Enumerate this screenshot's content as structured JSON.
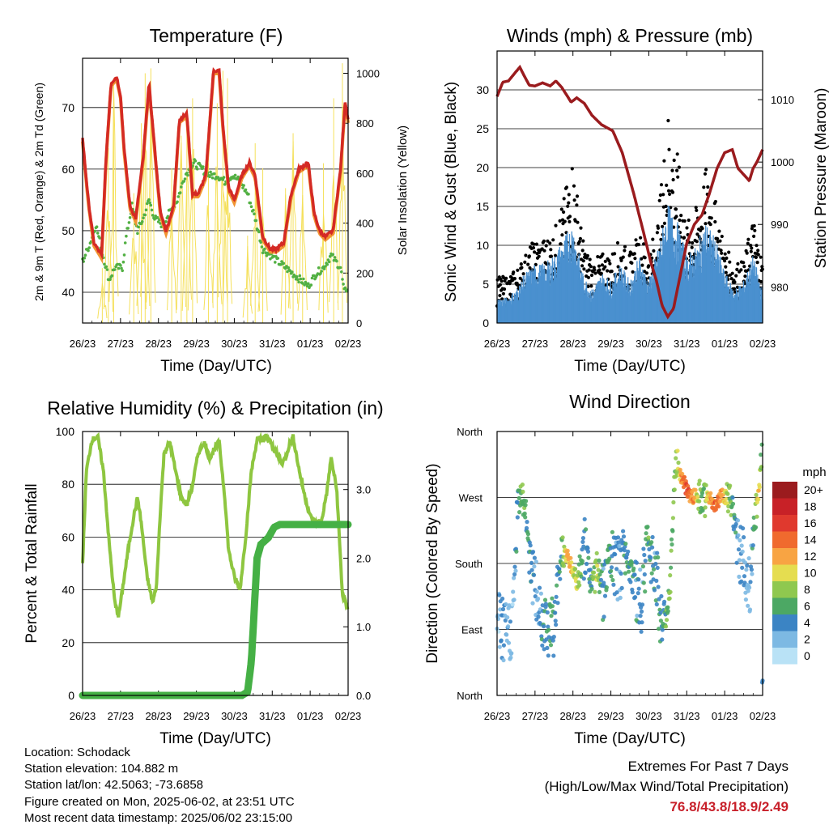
{
  "panels": {
    "temperature": {
      "title": "Temperature (F)",
      "ylabel_left": "2m & 9m T (Red, Orange) & 2m Td (Green)",
      "ylabel_right": "Solar Insolation (Yellow)",
      "xlabel": "Time (Day/UTC)"
    },
    "winds": {
      "title": "Winds (mph) & Pressure (mb)",
      "ylabel_left": "Sonic Wind & Gust (Blue, Black)",
      "ylabel_right": "Station Pressure (Maroon)",
      "xlabel": "Time (Day/UTC)"
    },
    "humidity": {
      "title": "Relative Humidity (%) & Precipitation (in)",
      "ylabel_left": "Percent & Total Rainfall",
      "xlabel": "Time (Day/UTC)"
    },
    "direction": {
      "title": "Wind Direction",
      "ylabel_left": "Direction (Colored By Speed)",
      "xlabel": "Time (Day/UTC)",
      "colorbar_title": "mph",
      "colorbar_labels": [
        "20+",
        "18",
        "16",
        "14",
        "12",
        "10",
        "8",
        "6",
        "4",
        "2",
        "0"
      ],
      "colorbar_colors": [
        "#9b1b1e",
        "#c82127",
        "#e0392e",
        "#f06a2e",
        "#f8a443",
        "#e5dd50",
        "#8fc84f",
        "#4ca864",
        "#3b84c4",
        "#7db9e3",
        "#b9e2f6"
      ]
    }
  },
  "footer": {
    "location": "Location: Schodack",
    "elevation": "Station elevation: 104.882 m",
    "latlon": "Station lat/lon: 42.5063; -73.6858",
    "created": "Figure created on Mon, 2025-06-02, at 23:51 UTC",
    "recent": "Most recent data timestamp: 2025/06/02 23:15:00",
    "extremes_title": "Extremes For Past 7 Days",
    "extremes_sub": "(High/Low/Max Wind/Total Precipitation)",
    "extremes_values": "76.8/43.8/18.9/2.49"
  },
  "chart_data": [
    {
      "id": "temperature",
      "type": "line",
      "x_ticks": [
        "26/23",
        "27/23",
        "28/23",
        "29/23",
        "30/23",
        "31/23",
        "01/23",
        "02/23"
      ],
      "xlim": [
        0,
        7
      ],
      "ylim": [
        35,
        78
      ],
      "y_ticks": [
        40,
        50,
        60,
        70
      ],
      "y2lim": [
        0,
        1060
      ],
      "y2_ticks": [
        0,
        200,
        400,
        600,
        800,
        1000
      ],
      "colors": {
        "t2m": "#d42a24",
        "t9m": "#f19433",
        "td": "#52b043",
        "solar": "#f5e05b"
      },
      "series": [
        {
          "key": "t2m",
          "x": [
            0,
            0.15,
            0.3,
            0.5,
            0.62,
            0.75,
            0.9,
            1.0,
            1.1,
            1.25,
            1.4,
            1.6,
            1.75,
            1.95,
            2.05,
            2.2,
            2.4,
            2.55,
            2.75,
            2.9,
            3.05,
            3.25,
            3.45,
            3.6,
            3.7,
            3.85,
            4.0,
            4.2,
            4.4,
            4.55,
            4.75,
            4.95,
            5.1,
            5.3,
            5.5,
            5.7,
            5.95,
            6.1,
            6.25,
            6.4,
            6.6,
            6.8,
            6.92,
            7.0
          ],
          "values": [
            65,
            55,
            48,
            46,
            62,
            74,
            75,
            72,
            63,
            54,
            52,
            62,
            74,
            60,
            53,
            50,
            54,
            68,
            69,
            56,
            56,
            59,
            76,
            76,
            67,
            57,
            55,
            59,
            61,
            59,
            49,
            47,
            47,
            48,
            56,
            60,
            61,
            53,
            50,
            49,
            50,
            60,
            71,
            68
          ]
        },
        {
          "key": "td",
          "x": [
            0,
            0.2,
            0.35,
            0.5,
            0.7,
            0.85,
            1.05,
            1.15,
            1.3,
            1.45,
            1.6,
            1.75,
            1.9,
            2.1,
            2.3,
            2.5,
            2.7,
            2.95,
            3.15,
            3.35,
            3.55,
            3.75,
            3.95,
            4.15,
            4.35,
            4.55,
            4.75,
            4.95,
            5.15,
            5.35,
            5.55,
            5.75,
            5.95,
            6.15,
            6.35,
            6.55,
            6.8,
            6.9,
            7.0
          ],
          "values": [
            45,
            48,
            51,
            47,
            42,
            44,
            44,
            49,
            54,
            50,
            52,
            55,
            52,
            51,
            53,
            55,
            59,
            61,
            60,
            59,
            59,
            58,
            59,
            58,
            56,
            52,
            47,
            46,
            45,
            44,
            43,
            42,
            41,
            43,
            44,
            46,
            44,
            40,
            41
          ]
        },
        {
          "key": "solar",
          "peaks_x": [
            0.52,
            0.68,
            0.82,
            1.35,
            1.55,
            1.65,
            1.8,
            2.35,
            2.6,
            2.75,
            2.9,
            3.32,
            3.55,
            3.7,
            3.82,
            4.35,
            4.55,
            4.75,
            5.35,
            5.55,
            5.8,
            6.35,
            6.62,
            6.85
          ],
          "peaks_values": [
            220,
            700,
            980,
            520,
            800,
            1000,
            1020,
            620,
            750,
            860,
            900,
            640,
            880,
            1010,
            980,
            350,
            720,
            620,
            540,
            760,
            620,
            640,
            900,
            1040
          ]
        }
      ]
    },
    {
      "id": "winds",
      "type": "scatter",
      "x_ticks": [
        "26/23",
        "27/23",
        "28/23",
        "29/23",
        "30/23",
        "31/23",
        "01/23",
        "02/23"
      ],
      "xlim": [
        0,
        7
      ],
      "ylim": [
        0,
        35
      ],
      "y_ticks": [
        0,
        5,
        10,
        15,
        20,
        25,
        30
      ],
      "y2lim": [
        974.2,
        1017.8
      ],
      "y2_ticks": [
        980,
        990,
        1000,
        1010
      ],
      "colors": {
        "gust": "#000000",
        "wind": "#4a90cf",
        "pressure": "#9a1b1e"
      },
      "series": [
        {
          "key": "pressure",
          "x": [
            0,
            0.15,
            0.3,
            0.5,
            0.6,
            0.7,
            0.85,
            1.0,
            1.2,
            1.4,
            1.55,
            1.7,
            1.85,
            1.95,
            2.1,
            2.3,
            2.5,
            2.75,
            3.05,
            3.3,
            3.6,
            3.85,
            4.05,
            4.2,
            4.35,
            4.5,
            4.65,
            4.8,
            5.0,
            5.2,
            5.4,
            5.6,
            5.8,
            6.0,
            6.2,
            6.35,
            6.5,
            6.65,
            6.75,
            6.85,
            7.0
          ],
          "values": [
            1010.5,
            1012.8,
            1013.0,
            1014.5,
            1015.2,
            1014.0,
            1012.3,
            1012.2,
            1012.7,
            1012.2,
            1013.0,
            1012.0,
            1010.6,
            1009.6,
            1010.3,
            1009.4,
            1007.5,
            1006.0,
            1005.0,
            1001.5,
            995.0,
            989.0,
            984.0,
            981.0,
            977.0,
            975.2,
            976.5,
            981.0,
            987.0,
            990.0,
            991.5,
            995.0,
            999.0,
            1001.5,
            1002.0,
            999.0,
            998.0,
            997.0,
            999.0,
            1000.0,
            1002.0
          ]
        },
        {
          "key": "wind_envelope",
          "x": [
            0,
            0.25,
            0.5,
            0.75,
            1.0,
            1.25,
            1.5,
            1.75,
            2.0,
            2.25,
            2.5,
            2.75,
            3.0,
            3.25,
            3.5,
            3.75,
            4.0,
            4.25,
            4.5,
            4.75,
            5.0,
            5.25,
            5.5,
            5.75,
            6.0,
            6.25,
            6.5,
            6.75,
            7.0
          ],
          "values": [
            3,
            3,
            4,
            6,
            7,
            7,
            8,
            10,
            12,
            6,
            4,
            6,
            5,
            7,
            5,
            8,
            5,
            9,
            14,
            12,
            8,
            9,
            12,
            10,
            6,
            4,
            5,
            8,
            4
          ]
        },
        {
          "key": "gust_envelope",
          "x": [
            0,
            0.25,
            0.5,
            0.75,
            1.0,
            1.25,
            1.5,
            1.75,
            2.0,
            2.25,
            2.5,
            2.75,
            3.0,
            3.25,
            3.5,
            3.75,
            4.0,
            4.25,
            4.5,
            4.75,
            5.0,
            5.25,
            5.5,
            5.75,
            6.0,
            6.25,
            6.5,
            6.75,
            7.0
          ],
          "values": [
            6,
            6,
            7,
            9,
            11,
            11,
            12,
            16,
            22,
            11,
            8,
            9,
            9,
            11,
            9,
            12,
            9,
            14,
            28,
            22,
            13,
            15,
            20,
            16,
            10,
            8,
            8,
            14,
            8
          ]
        }
      ]
    },
    {
      "id": "humidity",
      "type": "line",
      "x_ticks": [
        "26/23",
        "27/23",
        "28/23",
        "29/23",
        "30/23",
        "31/23",
        "01/23",
        "02/23"
      ],
      "xlim": [
        0,
        7
      ],
      "ylim": [
        0,
        100
      ],
      "y_ticks": [
        0,
        20,
        40,
        60,
        80,
        100
      ],
      "y2lim": [
        0,
        3.846
      ],
      "y2_ticks": [
        0.0,
        1.0,
        2.0,
        3.0
      ],
      "colors": {
        "rh": "#8ec640",
        "precip": "#45b045"
      },
      "series": [
        {
          "key": "rh",
          "x": [
            0,
            0.1,
            0.25,
            0.4,
            0.55,
            0.7,
            0.85,
            0.95,
            1.05,
            1.2,
            1.35,
            1.45,
            1.55,
            1.7,
            1.85,
            1.95,
            2.05,
            2.15,
            2.3,
            2.45,
            2.6,
            2.75,
            2.9,
            3.05,
            3.2,
            3.35,
            3.5,
            3.6,
            3.75,
            3.85,
            4.0,
            4.15,
            4.3,
            4.45,
            4.6,
            4.75,
            4.85,
            4.95,
            5.1,
            5.25,
            5.35,
            5.45,
            5.55,
            5.7,
            5.85,
            6.0,
            6.15,
            6.3,
            6.45,
            6.55,
            6.7,
            6.85,
            7.0
          ],
          "values": [
            50,
            85,
            97,
            98,
            85,
            58,
            35,
            30,
            40,
            55,
            68,
            75,
            65,
            45,
            35,
            42,
            70,
            92,
            96,
            85,
            75,
            72,
            80,
            92,
            96,
            90,
            94,
            96,
            75,
            55,
            45,
            40,
            60,
            85,
            97,
            97,
            98,
            96,
            92,
            88,
            90,
            95,
            98,
            86,
            76,
            68,
            65,
            66,
            78,
            90,
            78,
            38,
            33
          ]
        },
        {
          "key": "precip",
          "x": [
            0,
            4.2,
            4.35,
            4.45,
            4.55,
            4.6,
            4.7,
            4.9,
            5.05,
            5.2,
            5.4,
            5.6,
            6.0,
            7.0
          ],
          "values": [
            0.0,
            0.0,
            0.05,
            0.5,
            1.5,
            2.0,
            2.2,
            2.3,
            2.45,
            2.49,
            2.49,
            2.49,
            2.49,
            2.49
          ]
        }
      ]
    },
    {
      "id": "direction",
      "type": "scatter",
      "x_ticks": [
        "26/23",
        "27/23",
        "28/23",
        "29/23",
        "30/23",
        "31/23",
        "01/23",
        "02/23"
      ],
      "xlim": [
        0,
        7
      ],
      "ylim": [
        0,
        360
      ],
      "y_ticks": [
        "North",
        "East",
        "South",
        "West",
        "North"
      ],
      "y_tick_values": [
        0,
        90,
        180,
        270,
        360
      ],
      "series": [
        {
          "key": "direction",
          "x": [
            0,
            0.2,
            0.4,
            0.55,
            0.65,
            0.8,
            0.95,
            1.1,
            1.3,
            1.5,
            1.7,
            1.85,
            2.0,
            2.15,
            2.3,
            2.5,
            2.65,
            2.8,
            2.95,
            3.2,
            3.4,
            3.6,
            3.8,
            3.95,
            4.15,
            4.35,
            4.55,
            4.7,
            4.85,
            5.0,
            5.15,
            5.3,
            5.45,
            5.6,
            5.75,
            5.9,
            6.05,
            6.2,
            6.35,
            6.5,
            6.65,
            6.8,
            6.9,
            7.0
          ],
          "values": [
            110,
            80,
            95,
            260,
            280,
            230,
            160,
            120,
            100,
            90,
            200,
            190,
            170,
            160,
            200,
            150,
            175,
            140,
            185,
            170,
            200,
            155,
            125,
            215,
            185,
            95,
            130,
            320,
            300,
            280,
            270,
            275,
            265,
            270,
            255,
            275,
            270,
            260,
            205,
            180,
            150,
            240,
            280,
            340
          ],
          "speed": [
            2,
            3,
            2,
            5,
            7,
            5,
            4,
            3,
            5,
            4,
            6,
            12,
            10,
            8,
            4,
            6,
            9,
            4,
            6,
            3,
            5,
            5,
            3,
            6,
            4,
            5,
            7,
            7,
            12,
            15,
            13,
            9,
            7,
            12,
            14,
            13,
            9,
            6,
            3,
            3,
            2,
            6,
            12,
            4
          ]
        }
      ]
    }
  ]
}
